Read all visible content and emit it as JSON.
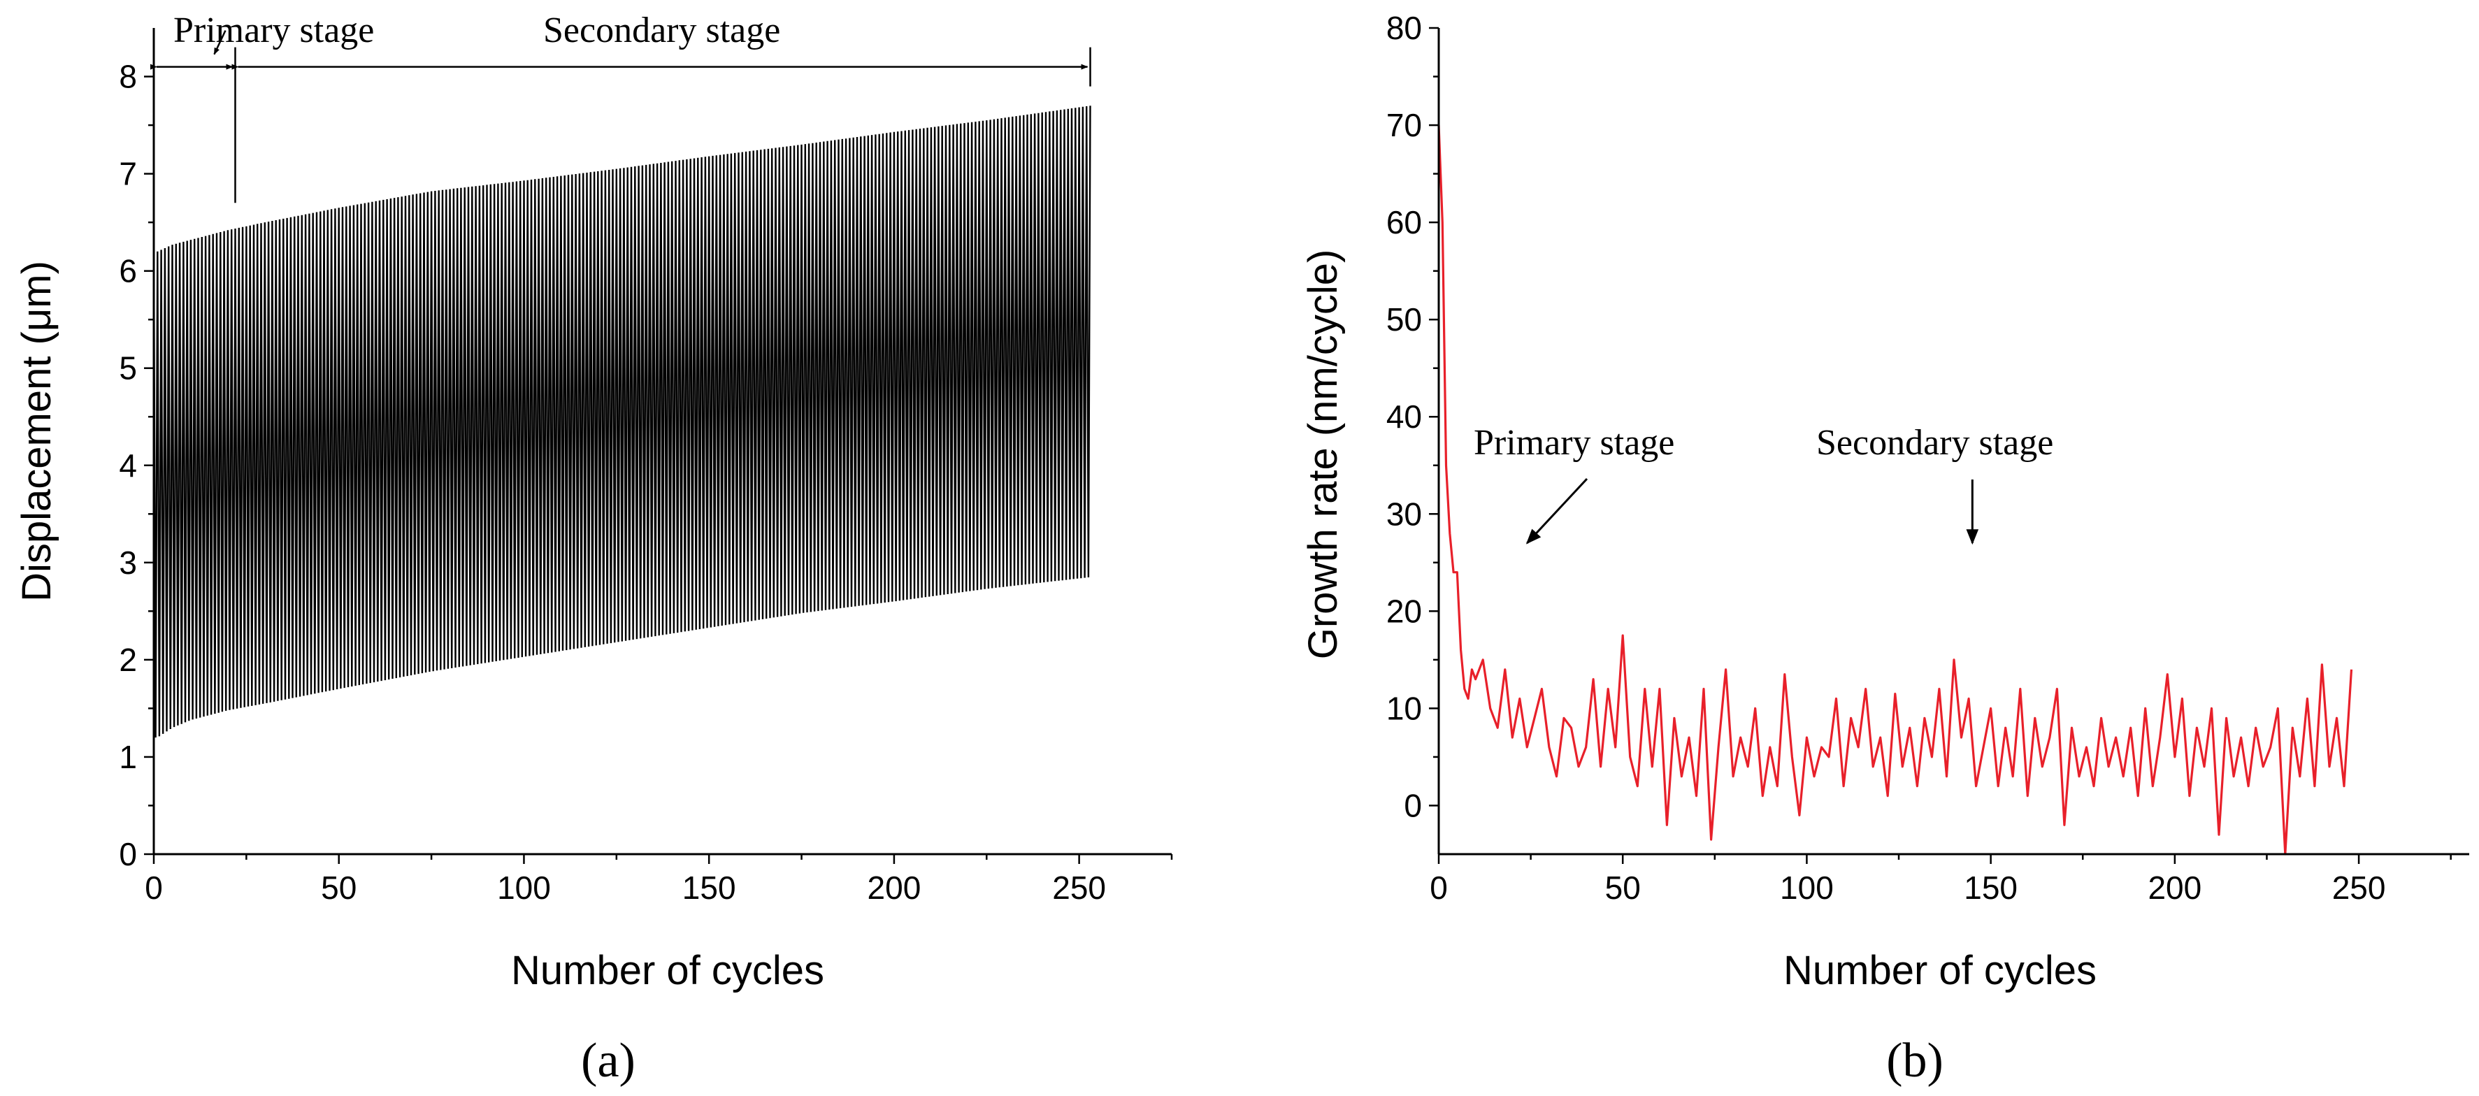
{
  "chart_data": [
    {
      "id": "a",
      "type": "line",
      "panel_label": "(a)",
      "title": "",
      "xlabel": "Number of cycles",
      "ylabel": "Displacement (μm)",
      "xlim": [
        0,
        275
      ],
      "ylim": [
        0,
        8.5
      ],
      "xticks": [
        0,
        50,
        100,
        150,
        200,
        250
      ],
      "yticks": [
        0,
        1,
        2,
        3,
        4,
        5,
        6,
        7,
        8
      ],
      "grid": false,
      "line_color": "#000000",
      "series": [
        {
          "name": "Displacement",
          "cycles": 253,
          "max_curve": {
            "x": [
              0,
              1,
              5,
              10,
              20,
              30,
              50,
              75,
              100,
              125,
              150,
              175,
              200,
              225,
              253
            ],
            "y": [
              6.2,
              6.2,
              6.27,
              6.32,
              6.42,
              6.5,
              6.65,
              6.82,
              6.93,
              7.05,
              7.18,
              7.3,
              7.43,
              7.55,
              7.7
            ]
          },
          "min_curve": {
            "x": [
              0,
              1,
              5,
              10,
              20,
              30,
              50,
              75,
              100,
              125,
              150,
              175,
              200,
              225,
              253
            ],
            "y": [
              1.2,
              1.2,
              1.3,
              1.38,
              1.48,
              1.55,
              1.7,
              1.88,
              2.03,
              2.18,
              2.33,
              2.48,
              2.6,
              2.73,
              2.85
            ]
          }
        }
      ],
      "annotations": [
        {
          "text": "Primary stage",
          "x_range": [
            0,
            22
          ],
          "arrow_y": 8.1
        },
        {
          "text": "Secondary stage",
          "x_range": [
            22,
            253
          ],
          "arrow_y": 8.1
        }
      ],
      "stage_boundary_x": 22
    },
    {
      "id": "b",
      "type": "line",
      "panel_label": "(b)",
      "title": "",
      "xlabel": "Number of cycles",
      "ylabel": "Growth rate (nm/cycle)",
      "xlim": [
        0,
        280
      ],
      "ylim": [
        -5,
        80
      ],
      "xticks": [
        0,
        50,
        100,
        150,
        200,
        250
      ],
      "yticks": [
        0,
        10,
        20,
        30,
        40,
        50,
        60,
        70,
        80
      ],
      "grid": false,
      "line_color": "#e8202a",
      "series": [
        {
          "name": "Growth rate",
          "x": [
            0,
            1,
            2,
            3,
            4,
            5,
            6,
            7,
            8,
            9,
            10,
            12,
            14,
            16,
            18,
            20,
            22,
            24,
            26,
            28,
            30,
            32,
            34,
            36,
            38,
            40,
            42,
            44,
            46,
            48,
            50,
            52,
            54,
            56,
            58,
            60,
            62,
            64,
            66,
            68,
            70,
            72,
            74,
            76,
            78,
            80,
            82,
            84,
            86,
            88,
            90,
            92,
            94,
            96,
            98,
            100,
            102,
            104,
            106,
            108,
            110,
            112,
            114,
            116,
            118,
            120,
            122,
            124,
            126,
            128,
            130,
            132,
            134,
            136,
            138,
            140,
            142,
            144,
            146,
            148,
            150,
            152,
            154,
            156,
            158,
            160,
            162,
            164,
            166,
            168,
            170,
            172,
            174,
            176,
            178,
            180,
            182,
            184,
            186,
            188,
            190,
            192,
            194,
            196,
            198,
            200,
            202,
            204,
            206,
            208,
            210,
            212,
            214,
            216,
            218,
            220,
            222,
            224,
            226,
            228,
            230,
            232,
            234,
            236,
            238,
            240,
            242,
            244,
            246,
            248
          ],
          "y": [
            70,
            60,
            35,
            28,
            24,
            24,
            16,
            12,
            11,
            14,
            13,
            15,
            10,
            8,
            14,
            7,
            11,
            6,
            9,
            12,
            6,
            3,
            9,
            8,
            4,
            6,
            13,
            4,
            12,
            6,
            17.5,
            5,
            2,
            12,
            4,
            12,
            -2,
            9,
            3,
            7,
            1,
            12,
            -3.5,
            6,
            14,
            3,
            7,
            4,
            10,
            1,
            6,
            2,
            13.5,
            5,
            -1,
            7,
            3,
            6,
            5,
            11,
            2,
            9,
            6,
            12,
            4,
            7,
            1,
            11.5,
            4,
            8,
            2,
            9,
            5,
            12,
            3,
            15,
            7,
            11,
            2,
            6,
            10,
            2,
            8,
            3,
            12,
            1,
            9,
            4,
            7,
            12,
            -2,
            8,
            3,
            6,
            2,
            9,
            4,
            7,
            3,
            8,
            1,
            10,
            2,
            7,
            13.5,
            5,
            11,
            1,
            8,
            4,
            10,
            -3,
            9,
            3,
            7,
            2,
            8,
            4,
            6,
            10,
            -5,
            8,
            3,
            11,
            2,
            14.5,
            4,
            9,
            2,
            14
          ]
        }
      ],
      "annotations": [
        {
          "text": "Primary stage",
          "arrow_to": [
            24,
            27
          ]
        },
        {
          "text": "Secondary stage",
          "arrow_to": [
            145,
            27
          ]
        }
      ]
    }
  ]
}
